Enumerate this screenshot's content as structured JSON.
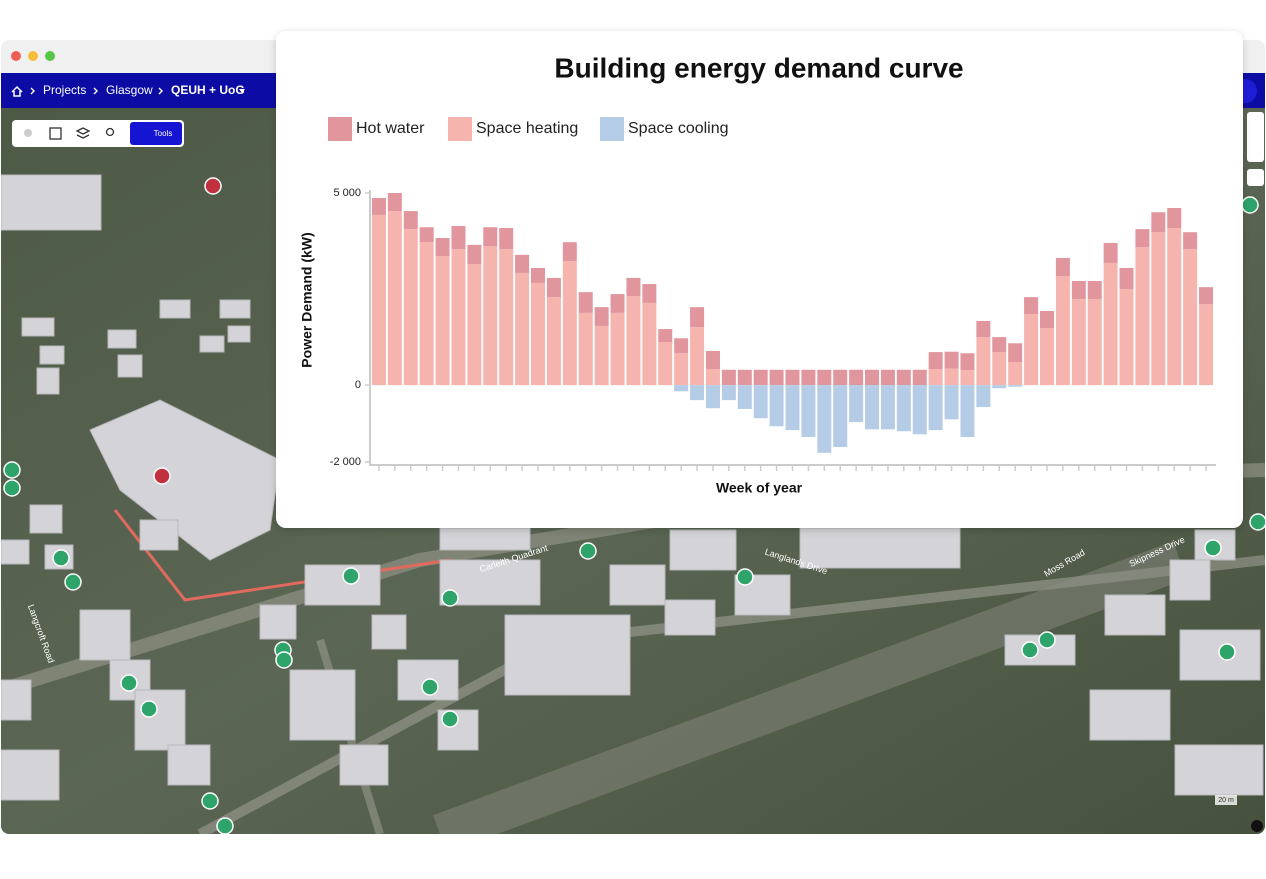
{
  "app": {
    "breadcrumb": [
      "Projects",
      "Glasgow",
      "QEUH + UoG"
    ],
    "tools_button": "Tools",
    "scale": "20 m",
    "road_labels": [
      "Carleith Quadrant",
      "Langcroft Road",
      "Moss Road",
      "Langlands Drive",
      "Skipness Drive"
    ]
  },
  "chart_data": {
    "type": "stacked_bar",
    "title": "Building energy demand curve",
    "x_label": "Week of year",
    "y_label": "Power Demand (kW)",
    "categories": [
      null,
      null,
      null,
      null,
      null,
      null,
      null,
      null,
      null,
      null,
      null,
      null,
      null,
      null,
      null,
      null,
      null,
      null,
      null,
      null,
      null,
      null,
      null,
      null,
      null,
      null,
      null,
      null,
      null,
      null,
      null,
      null,
      null,
      null,
      null,
      null,
      null,
      null,
      null,
      null,
      null,
      null,
      null,
      null,
      null,
      null,
      null,
      null,
      null,
      null,
      null,
      null,
      null
    ],
    "ylim": [
      -2000,
      5000
    ],
    "yticks": [
      {
        "value": -2000,
        "label": "-2 000"
      },
      0,
      {
        "value": 5000,
        "label": "5 000"
      }
    ],
    "series": [
      {
        "name": "Hot water",
        "color": "#e0969c",
        "values": [
          440,
          470,
          470,
          390,
          470,
          600,
          500,
          490,
          550,
          470,
          390,
          500,
          490,
          540,
          490,
          490,
          470,
          490,
          340,
          390,
          520,
          470,
          400,
          400,
          400,
          400,
          400,
          400,
          400,
          400,
          400,
          400,
          400,
          400,
          400,
          440,
          440,
          440,
          420,
          390,
          490,
          440,
          450,
          470,
          470,
          470,
          520,
          550,
          470,
          520,
          520,
          440,
          440
        ]
      },
      {
        "name": "Space heating",
        "color": "#f6b4af",
        "values": [
          4430,
          4530,
          4060,
          3720,
          3360,
          3540,
          3150,
          3620,
          3540,
          2920,
          2660,
          2290,
          3230,
          1880,
          1540,
          1880,
          2320,
          2140,
          1120,
          830,
          1510,
          420,
          0,
          0,
          0,
          0,
          0,
          0,
          0,
          0,
          0,
          0,
          0,
          0,
          0,
          420,
          430,
          390,
          1250,
          860,
          600,
          1850,
          1480,
          2840,
          2240,
          2240,
          3180,
          2500,
          3590,
          3980,
          4090,
          3540,
          2110
        ]
      },
      {
        "name": "Space cooling",
        "color": "#b4cce6",
        "values": [
          0,
          0,
          0,
          0,
          0,
          0,
          0,
          0,
          0,
          0,
          0,
          0,
          0,
          0,
          0,
          0,
          0,
          0,
          0,
          -160,
          -390,
          -600,
          -390,
          -620,
          -860,
          -1070,
          -1170,
          -1350,
          -1760,
          -1610,
          -960,
          -1150,
          -1150,
          -1200,
          -1280,
          -1170,
          -890,
          -1350,
          -570,
          -80,
          -40,
          0,
          0,
          0,
          0,
          0,
          0,
          0,
          0,
          0,
          0,
          0,
          0
        ]
      }
    ]
  }
}
